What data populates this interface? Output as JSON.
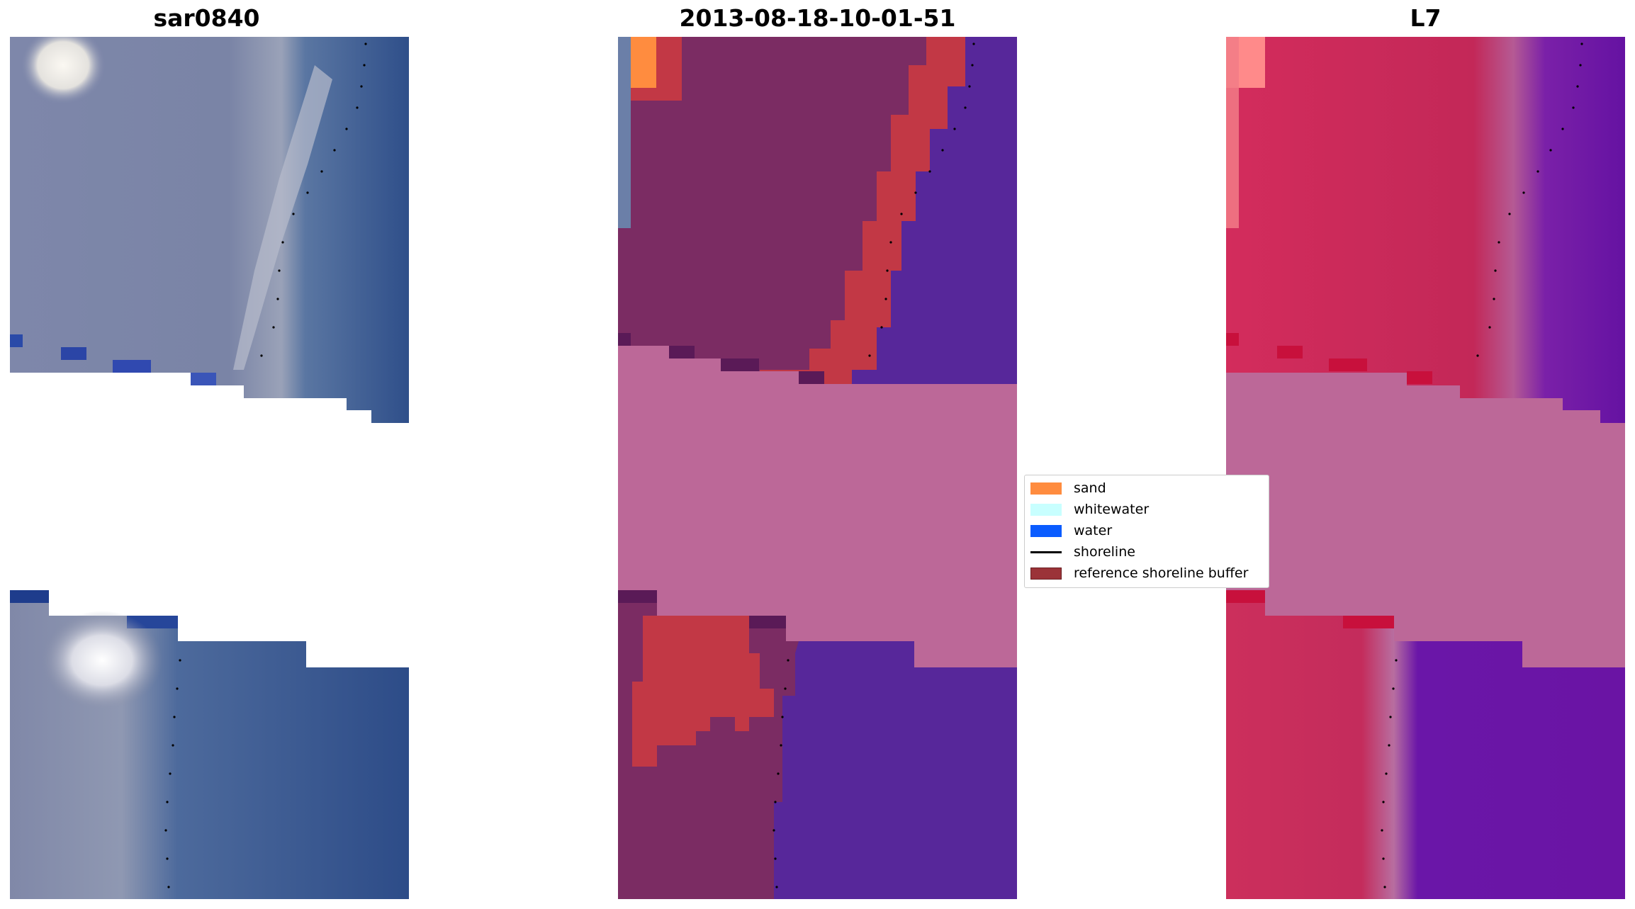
{
  "panels": [
    {
      "title": "sar0840",
      "kind": "rgb"
    },
    {
      "title": "2013-08-18-10-01-51",
      "kind": "classified"
    },
    {
      "title": "L7",
      "kind": "index"
    }
  ],
  "legend": {
    "placement": "center",
    "items": [
      {
        "label": "sand",
        "color": "#ff8c3f",
        "type": "patch"
      },
      {
        "label": "whitewater",
        "color": "#c8ffff",
        "type": "patch"
      },
      {
        "label": "water",
        "color": "#0a5cff",
        "type": "patch"
      },
      {
        "label": "shoreline",
        "color": "#000000",
        "type": "line"
      },
      {
        "label": "reference shoreline buffer",
        "color": "#9b3338",
        "type": "patch"
      }
    ]
  },
  "colors": {
    "rgb_land": "#7d86a8",
    "rgb_water": "#2e4f8c",
    "rgb_cloud": "#f4f2ee",
    "cls_land": "#7b2c63",
    "cls_water": "#57279a",
    "cls_buffer": "#c23845",
    "cls_nodata": "#bc6898",
    "idx_land": "#c92858",
    "idx_water": "#6a15a6",
    "idx_nodata": "#bc6898"
  }
}
